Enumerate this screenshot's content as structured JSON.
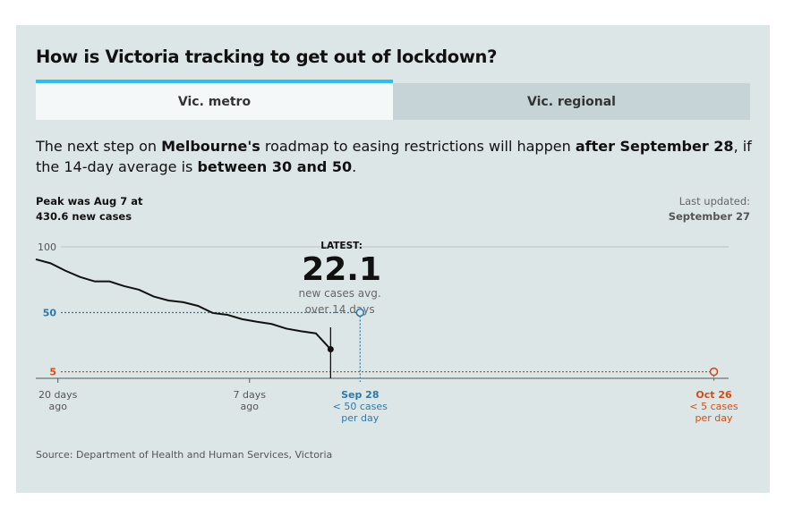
{
  "title": "How is Victoria tracking to get out of lockdown?",
  "tabs": [
    {
      "label": "Vic. metro",
      "active": true
    },
    {
      "label": "Vic. regional",
      "active": false
    }
  ],
  "intro": {
    "p1": "The next step on ",
    "b1": "Melbourne's",
    "p2": " roadmap to easing restrictions will happen ",
    "b2": "after September 28",
    "p3": ", if the 14-day average is ",
    "b3": "between 30 and 50",
    "p4": "."
  },
  "peak": {
    "line1": "Peak was Aug 7 at",
    "line2": "430.6 new cases"
  },
  "updated": {
    "label": "Last updated:",
    "date": "September 27"
  },
  "source": "Source: Department of Health and Human Services, Victoria",
  "colors": {
    "line": "#111111",
    "target50": "#2f79a8",
    "target5": "#cd4e1b",
    "accent_tab": "#2cc0ea",
    "grid": "#b7c1c3"
  },
  "chart_data": {
    "type": "line",
    "title": "",
    "ylim": [
      0,
      100
    ],
    "yticks": [
      {
        "label": "100",
        "value": 100,
        "kind": "grid"
      },
      {
        "label": "50",
        "value": 50,
        "kind": "target50"
      },
      {
        "label": "5",
        "value": 5,
        "kind": "target5"
      }
    ],
    "x_range": [
      0,
      47
    ],
    "series": [
      {
        "name": "14-day average new cases",
        "x": [
          0,
          1,
          2,
          3,
          4,
          5,
          6,
          7,
          8,
          9,
          10,
          11,
          12,
          13,
          14,
          15,
          16,
          17,
          18,
          19,
          20
        ],
        "values": [
          90.5,
          87.5,
          81.9,
          77.1,
          73.7,
          73.7,
          70.1,
          67.4,
          62.2,
          59.2,
          57.9,
          55.1,
          49.7,
          48.3,
          45.0,
          43.0,
          41.3,
          37.8,
          35.8,
          34.2,
          22.1
        ]
      }
    ],
    "x_ticks": [
      {
        "x": 1.5,
        "line1": "20 days",
        "line2": "ago",
        "line3": ""
      },
      {
        "x": 14.5,
        "line1": "7 days",
        "line2": "ago",
        "line3": ""
      }
    ],
    "milestones": [
      {
        "x": 22,
        "value": 50,
        "kind": "target50",
        "line1": "Sep 28",
        "line2": "< 50 cases",
        "line3": "per day"
      },
      {
        "x": 46,
        "value": 5,
        "kind": "target5",
        "line1": "Oct 26",
        "line2": "< 5 cases",
        "line3": "per day"
      }
    ],
    "latest": {
      "x": 20.5,
      "value": 22.1,
      "label": "LATEST:",
      "value_label": "22.1",
      "sub1": "new cases avg.",
      "sub2": "over 14 days"
    }
  }
}
